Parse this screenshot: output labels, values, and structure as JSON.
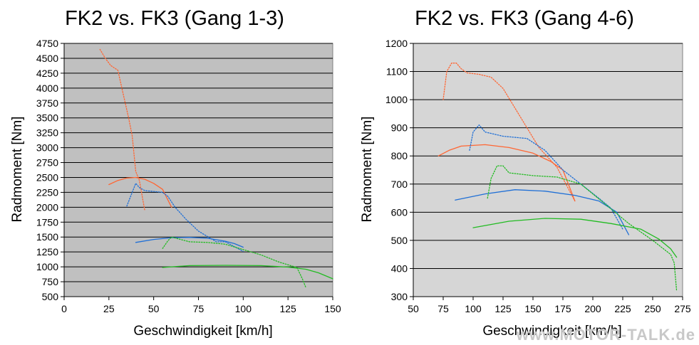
{
  "chart_data": [
    {
      "type": "line",
      "title": "FK2 vs. FK3 (Gang 1-3)",
      "xlabel": "Geschwindigkeit [km/h]",
      "ylabel": "Radmoment [Nm]",
      "xlim": [
        0,
        150
      ],
      "ylim": [
        500,
        4750
      ],
      "x_ticks": [
        0,
        25,
        50,
        75,
        100,
        125,
        150
      ],
      "y_ticks": [
        500,
        750,
        1000,
        1250,
        1500,
        1750,
        2000,
        2250,
        2500,
        2750,
        3000,
        3250,
        3500,
        3750,
        4000,
        4250,
        4500,
        4750
      ],
      "grid": "horizontal",
      "plot_background": "#c0c0c0",
      "series": [
        {
          "color": "#ff6633",
          "dash": "dotted",
          "points": [
            [
              20,
              4650
            ],
            [
              23,
              4500
            ],
            [
              26,
              4380
            ],
            [
              30,
              4300
            ],
            [
              33,
              3900
            ],
            [
              36,
              3500
            ],
            [
              38,
              3200
            ],
            [
              40,
              2600
            ],
            [
              42,
              2450
            ],
            [
              45,
              1950
            ]
          ]
        },
        {
          "color": "#ff6633",
          "dash": "solid",
          "points": [
            [
              25,
              2380
            ],
            [
              30,
              2450
            ],
            [
              35,
              2490
            ],
            [
              40,
              2500
            ],
            [
              45,
              2470
            ],
            [
              50,
              2400
            ],
            [
              55,
              2300
            ],
            [
              60,
              2000
            ]
          ]
        },
        {
          "color": "#1f6fd6",
          "dash": "dotted",
          "points": [
            [
              35,
              2020
            ],
            [
              38,
              2250
            ],
            [
              40,
              2400
            ],
            [
              42,
              2330
            ],
            [
              45,
              2280
            ],
            [
              55,
              2250
            ],
            [
              58,
              2180
            ],
            [
              62,
              2000
            ],
            [
              68,
              1800
            ],
            [
              75,
              1600
            ],
            [
              85,
              1420
            ],
            [
              90,
              1420
            ],
            [
              100,
              1260
            ]
          ]
        },
        {
          "color": "#1f6fd6",
          "dash": "solid",
          "points": [
            [
              40,
              1410
            ],
            [
              50,
              1460
            ],
            [
              60,
              1490
            ],
            [
              70,
              1495
            ],
            [
              80,
              1480
            ],
            [
              90,
              1430
            ],
            [
              95,
              1390
            ],
            [
              100,
              1330
            ]
          ]
        },
        {
          "color": "#22bb22",
          "dash": "dotted",
          "points": [
            [
              55,
              1310
            ],
            [
              58,
              1440
            ],
            [
              60,
              1500
            ],
            [
              65,
              1460
            ],
            [
              70,
              1420
            ],
            [
              80,
              1410
            ],
            [
              90,
              1380
            ],
            [
              100,
              1290
            ],
            [
              110,
              1200
            ],
            [
              120,
              1080
            ],
            [
              130,
              990
            ],
            [
              133,
              800
            ],
            [
              135,
              650
            ]
          ]
        },
        {
          "color": "#22bb22",
          "dash": "solid",
          "points": [
            [
              55,
              990
            ],
            [
              70,
              1020
            ],
            [
              90,
              1025
            ],
            [
              110,
              1020
            ],
            [
              125,
              995
            ],
            [
              135,
              960
            ],
            [
              142,
              900
            ],
            [
              150,
              800
            ]
          ]
        }
      ]
    },
    {
      "type": "line",
      "title": "FK2 vs. FK3 (Gang 4-6)",
      "xlabel": "Geschwindigkeit [km/h]",
      "ylabel": "Radmoment [Nm]",
      "xlim": [
        50,
        275
      ],
      "ylim": [
        300,
        1200
      ],
      "x_ticks": [
        50,
        75,
        100,
        125,
        150,
        175,
        200,
        225,
        250,
        275
      ],
      "y_ticks": [
        300,
        400,
        500,
        600,
        700,
        800,
        900,
        1000,
        1100,
        1200
      ],
      "grid": "horizontal",
      "plot_background": "#d6d6d6",
      "series": [
        {
          "color": "#ff6633",
          "dash": "dotted",
          "points": [
            [
              75,
              1000
            ],
            [
              78,
              1100
            ],
            [
              82,
              1130
            ],
            [
              86,
              1130
            ],
            [
              90,
              1110
            ],
            [
              95,
              1095
            ],
            [
              105,
              1090
            ],
            [
              115,
              1080
            ],
            [
              125,
              1040
            ],
            [
              135,
              970
            ],
            [
              145,
              900
            ],
            [
              155,
              830
            ],
            [
              170,
              760
            ],
            [
              185,
              640
            ]
          ]
        },
        {
          "color": "#ff6633",
          "dash": "solid",
          "points": [
            [
              71,
              800
            ],
            [
              80,
              820
            ],
            [
              90,
              835
            ],
            [
              110,
              840
            ],
            [
              130,
              830
            ],
            [
              150,
              810
            ],
            [
              165,
              780
            ],
            [
              175,
              750
            ],
            [
              185,
              640
            ]
          ]
        },
        {
          "color": "#1f6fd6",
          "dash": "dotted",
          "points": [
            [
              97,
              820
            ],
            [
              100,
              885
            ],
            [
              105,
              910
            ],
            [
              110,
              885
            ],
            [
              125,
              870
            ],
            [
              145,
              862
            ],
            [
              160,
              820
            ],
            [
              175,
              750
            ],
            [
              190,
              700
            ],
            [
              205,
              650
            ],
            [
              215,
              615
            ],
            [
              225,
              540
            ]
          ]
        },
        {
          "color": "#1f6fd6",
          "dash": "solid",
          "points": [
            [
              85,
              643
            ],
            [
              110,
              665
            ],
            [
              135,
              680
            ],
            [
              160,
              675
            ],
            [
              185,
              660
            ],
            [
              205,
              640
            ],
            [
              220,
              600
            ],
            [
              230,
              520
            ]
          ]
        },
        {
          "color": "#22bb22",
          "dash": "dotted",
          "points": [
            [
              112,
              650
            ],
            [
              115,
              720
            ],
            [
              120,
              765
            ],
            [
              125,
              765
            ],
            [
              130,
              740
            ],
            [
              150,
              730
            ],
            [
              170,
              725
            ],
            [
              190,
              700
            ],
            [
              210,
              630
            ],
            [
              230,
              560
            ],
            [
              250,
              500
            ],
            [
              265,
              450
            ],
            [
              268,
              420
            ],
            [
              270,
              320
            ]
          ]
        },
        {
          "color": "#22bb22",
          "dash": "solid",
          "points": [
            [
              100,
              545
            ],
            [
              130,
              568
            ],
            [
              160,
              578
            ],
            [
              190,
              575
            ],
            [
              215,
              560
            ],
            [
              240,
              540
            ],
            [
              255,
              505
            ],
            [
              265,
              470
            ],
            [
              270,
              440
            ]
          ]
        }
      ]
    }
  ],
  "watermark": "www.MOTOR-TALK.de"
}
